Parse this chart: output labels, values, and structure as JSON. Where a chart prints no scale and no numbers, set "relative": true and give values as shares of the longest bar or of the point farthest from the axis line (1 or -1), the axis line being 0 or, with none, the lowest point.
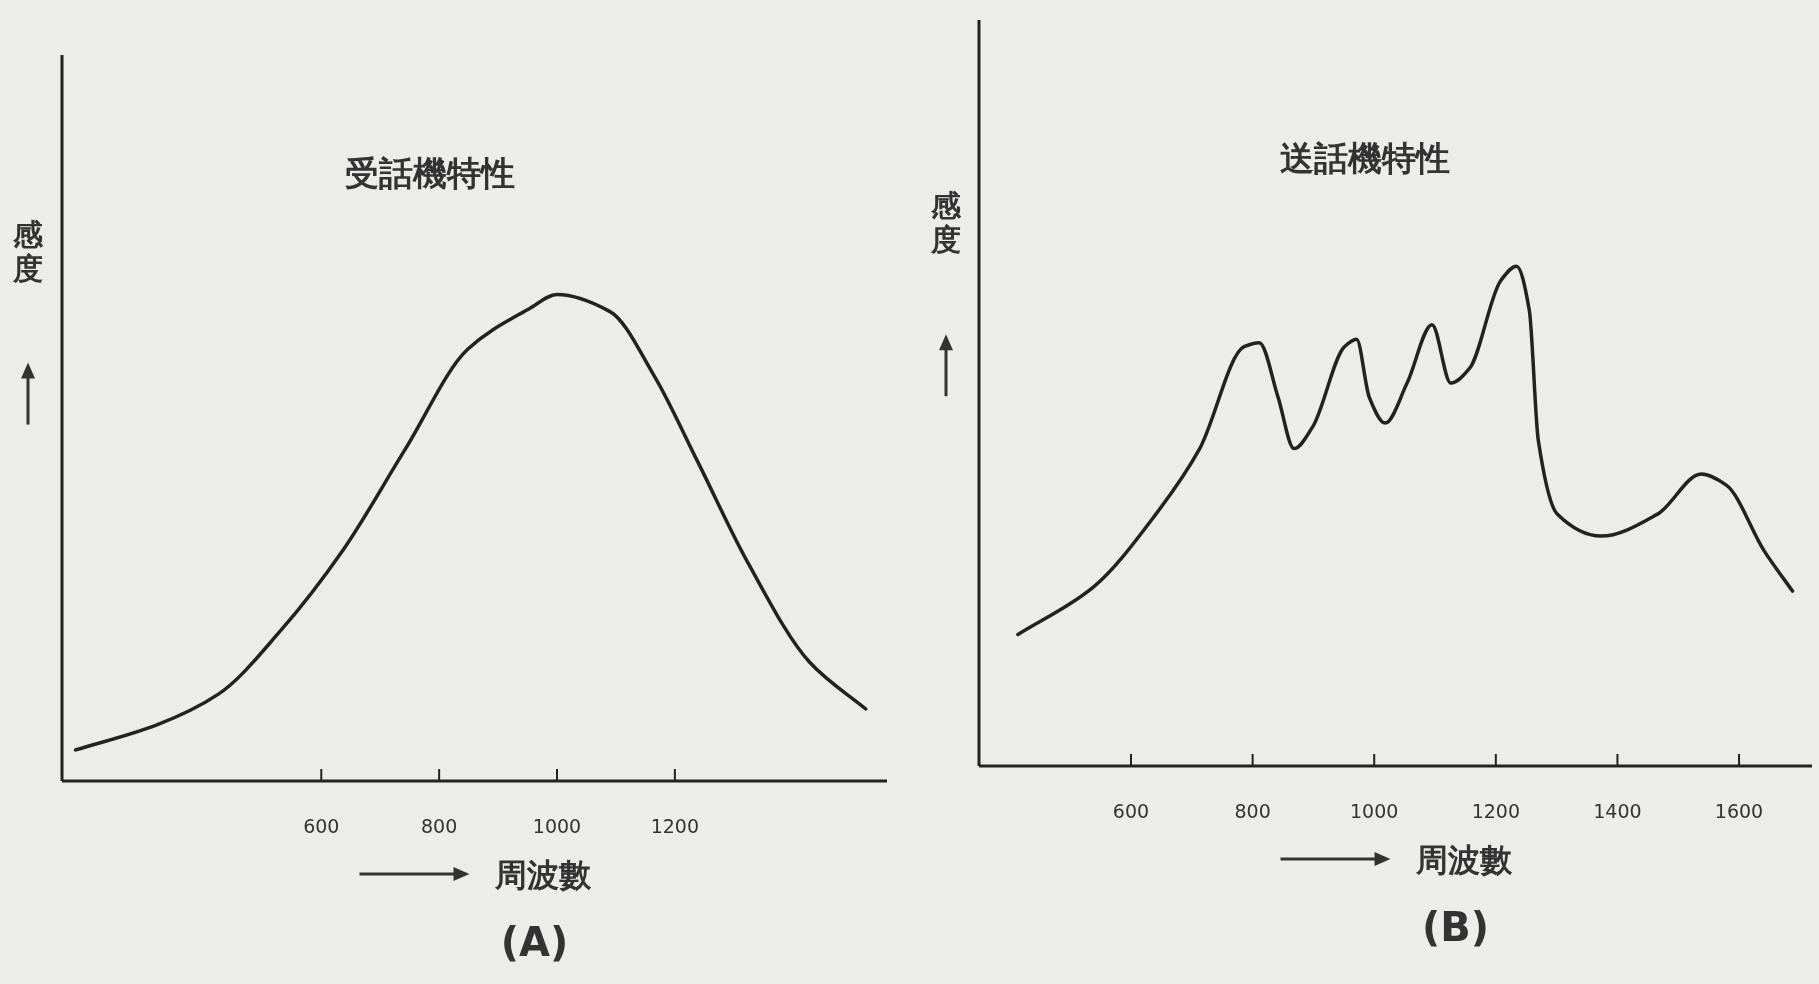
{
  "chart_data": [
    {
      "type": "line",
      "title": "受話機特性",
      "ylabel": "感度",
      "xlabel": "周波數",
      "annotations": [
        "(A)"
      ],
      "relative": true,
      "tick_labels": "x",
      "xlim": [
        160,
        1560
      ],
      "xticks": [
        600,
        800,
        1000,
        1200
      ],
      "x": [
        183,
        320,
        426,
        531,
        637,
        742,
        848,
        953,
        1000,
        1090,
        1164,
        1239,
        1323,
        1428,
        1524
      ],
      "series": [
        {
          "color": "#222222",
          "values": [
            0.064,
            0.115,
            0.179,
            0.309,
            0.475,
            0.681,
            0.887,
            0.971,
            1,
            0.965,
            0.835,
            0.656,
            0.451,
            0.245,
            0.148
          ]
        }
      ]
    },
    {
      "type": "line",
      "title": "送話機特性",
      "ylabel": "感度",
      "xlabel": "周波數",
      "annotations": [
        "(B)"
      ],
      "relative": true,
      "tick_labels": "x",
      "xlim": [
        350,
        1720
      ],
      "xticks": [
        600,
        800,
        1000,
        1200,
        1400,
        1600
      ],
      "x": [
        414,
        538,
        641,
        713,
        786,
        811,
        842,
        868,
        899,
        951,
        971,
        992,
        1018,
        1054,
        1095,
        1126,
        1157,
        1208,
        1234,
        1255,
        1270,
        1301,
        1373,
        1466,
        1538,
        1579,
        1641,
        1688
      ],
      "series": [
        {
          "color": "#222222",
          "values": [
            0.263,
            0.358,
            0.504,
            0.635,
            0.839,
            0.847,
            0.737,
            0.635,
            0.679,
            0.839,
            0.854,
            0.737,
            0.686,
            0.766,
            0.883,
            0.766,
            0.796,
            0.971,
            1,
            0.912,
            0.65,
            0.504,
            0.46,
            0.504,
            0.584,
            0.562,
            0.431,
            0.35
          ]
        }
      ]
    }
  ]
}
